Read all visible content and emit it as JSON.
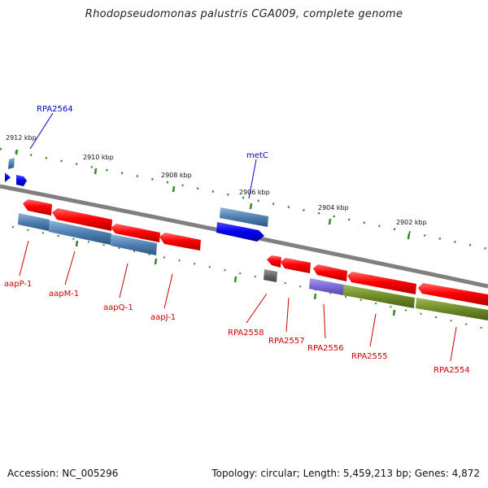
{
  "title": "Rhodopseudomonas palustris CGA009, complete genome",
  "footer": {
    "accession": "Accession: NC_005296",
    "summary": "Topology: circular; Length: 5,459,213 bp; Genes: 4,872"
  },
  "ruler": [
    "2912 kbp",
    "2910 kbp",
    "2908 kbp",
    "2906 kbp",
    "2904 kbp",
    "2902 kbp"
  ],
  "labels": {
    "RPA2564": "RPA2564",
    "metC": "metC",
    "aapP": "aapP-1",
    "aapM": "aapM-1",
    "aapQ": "aapQ-1",
    "aapJ": "aapJ-1",
    "RPA2558": "RPA2558",
    "RPA2557": "RPA2557",
    "RPA2556": "RPA2556",
    "RPA2555": "RPA2555",
    "RPA2554": "RPA2554"
  },
  "colors": {
    "gene": "#ff0000",
    "cds_steel": "#4f7fb0",
    "cds_blue": "#0000ee",
    "cds_olive": "#6e8b28",
    "cds_purple": "#7a6ad6",
    "cds_gray": "#666666",
    "ruler": "#2e8b22",
    "backbone": "#808080",
    "label_red": "#cc0000",
    "label_blue": "#0000cc"
  }
}
